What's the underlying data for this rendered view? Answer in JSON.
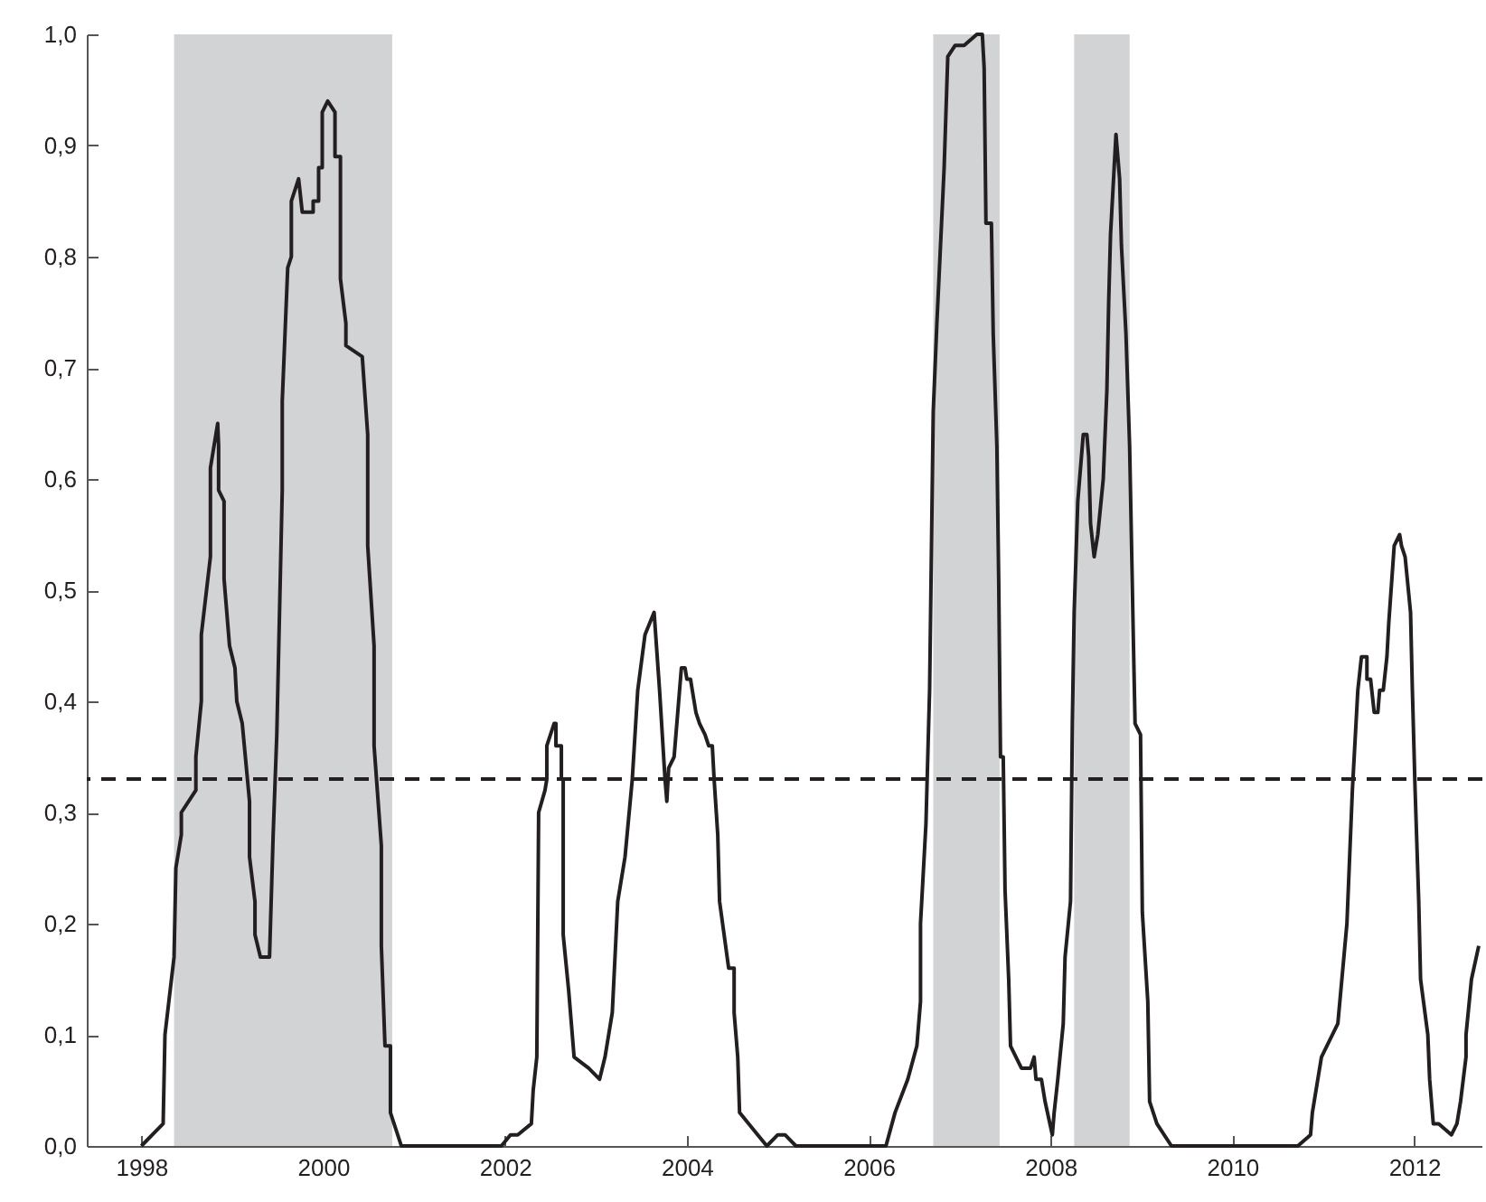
{
  "chart_data": {
    "type": "line",
    "x": [
      1998.0,
      1998.24,
      1998.26,
      1998.36,
      1998.38,
      1998.44,
      1998.44,
      1998.6,
      1998.6,
      1998.66,
      1998.66,
      1998.76,
      1998.76,
      1998.84,
      1998.85,
      1998.85,
      1998.91,
      1998.91,
      1998.97,
      1999.03,
      1999.05,
      1999.11,
      1999.19,
      1999.19,
      1999.25,
      1999.25,
      1999.31,
      1999.41,
      1999.45,
      1999.49,
      1999.55,
      1999.55,
      1999.61,
      1999.65,
      1999.65,
      1999.73,
      1999.77,
      1999.89,
      1999.89,
      1999.95,
      1999.95,
      1999.99,
      1999.99,
      2000.05,
      2000.13,
      2000.13,
      2000.19,
      2000.19,
      2000.25,
      2000.25,
      2000.43,
      2000.49,
      2000.49,
      2000.56,
      2000.56,
      2000.64,
      2000.64,
      2000.68,
      2000.74,
      2000.74,
      2000.86,
      2001.96,
      2002.06,
      2002.14,
      2002.29,
      2002.31,
      2002.35,
      2002.37,
      2002.44,
      2002.46,
      2002.46,
      2002.54,
      2002.56,
      2002.56,
      2002.62,
      2002.62,
      2002.64,
      2002.64,
      2002.7,
      2002.76,
      2002.92,
      2003.04,
      2003.1,
      2003.18,
      2003.24,
      2003.32,
      2003.4,
      2003.46,
      2003.54,
      2003.64,
      2003.7,
      2003.76,
      2003.78,
      2003.8,
      2003.86,
      2003.94,
      2003.98,
      2004.0,
      2004.04,
      2004.06,
      2004.1,
      2004.14,
      2004.2,
      2004.24,
      2004.28,
      2004.3,
      2004.34,
      2004.36,
      2004.46,
      2004.52,
      2004.52,
      2004.56,
      2004.58,
      2004.78,
      2004.88,
      2005.0,
      2005.08,
      2005.2,
      2006.19,
      2006.29,
      2006.43,
      2006.53,
      2006.57,
      2006.57,
      2006.63,
      2006.67,
      2006.71,
      2006.75,
      2006.79,
      2006.83,
      2006.87,
      2006.95,
      2007.05,
      2007.19,
      2007.25,
      2007.27,
      2007.29,
      2007.35,
      2007.37,
      2007.41,
      2007.43,
      2007.45,
      2007.48,
      2007.5,
      2007.54,
      2007.56,
      2007.62,
      2007.68,
      2007.78,
      2007.82,
      2007.84,
      2007.9,
      2007.94,
      2008.02,
      2008.04,
      2008.08,
      2008.14,
      2008.16,
      2008.22,
      2008.24,
      2008.26,
      2008.3,
      2008.34,
      2008.36,
      2008.4,
      2008.42,
      2008.44,
      2008.48,
      2008.52,
      2008.58,
      2008.62,
      2008.64,
      2008.66,
      2008.72,
      2008.76,
      2008.78,
      2008.83,
      2008.87,
      2008.91,
      2008.93,
      2008.99,
      2009.01,
      2009.07,
      2009.09,
      2009.17,
      2009.33,
      2010.72,
      2010.86,
      2010.88,
      2010.98,
      2011.16,
      2011.26,
      2011.32,
      2011.38,
      2011.42,
      2011.48,
      2011.48,
      2011.52,
      2011.56,
      2011.6,
      2011.62,
      2011.66,
      2011.7,
      2011.72,
      2011.78,
      2011.84,
      2011.86,
      2011.9,
      2011.96,
      2011.98,
      2012.01,
      2012.05,
      2012.07,
      2012.15,
      2012.17,
      2012.21,
      2012.27,
      2012.41,
      2012.47,
      2012.51,
      2012.57,
      2012.57,
      2012.63,
      2012.71
    ],
    "series": [
      {
        "color": "#231f20",
        "values": [
          0,
          0.02,
          0.1,
          0.17,
          0.25,
          0.28,
          0.3,
          0.32,
          0.35,
          0.4,
          0.46,
          0.53,
          0.61,
          0.65,
          0.63,
          0.59,
          0.58,
          0.51,
          0.45,
          0.43,
          0.4,
          0.38,
          0.31,
          0.26,
          0.22,
          0.19,
          0.17,
          0.17,
          0.28,
          0.37,
          0.59,
          0.67,
          0.79,
          0.8,
          0.85,
          0.87,
          0.84,
          0.84,
          0.85,
          0.85,
          0.88,
          0.88,
          0.93,
          0.94,
          0.93,
          0.89,
          0.89,
          0.78,
          0.74,
          0.72,
          0.71,
          0.64,
          0.54,
          0.45,
          0.36,
          0.27,
          0.18,
          0.09,
          0.09,
          0.03,
          0,
          0,
          0.01,
          0.01,
          0.02,
          0.05,
          0.08,
          0.3,
          0.32,
          0.33,
          0.36,
          0.38,
          0.38,
          0.36,
          0.36,
          0.33,
          0.33,
          0.19,
          0.14,
          0.08,
          0.07,
          0.06,
          0.08,
          0.12,
          0.22,
          0.26,
          0.33,
          0.41,
          0.46,
          0.48,
          0.41,
          0.33,
          0.31,
          0.34,
          0.35,
          0.43,
          0.43,
          0.42,
          0.42,
          0.41,
          0.39,
          0.38,
          0.37,
          0.36,
          0.36,
          0.33,
          0.28,
          0.22,
          0.16,
          0.16,
          0.12,
          0.08,
          0.03,
          0.01,
          0,
          0.01,
          0.01,
          0,
          0,
          0.03,
          0.06,
          0.09,
          0.13,
          0.2,
          0.29,
          0.41,
          0.66,
          0.74,
          0.81,
          0.88,
          0.98,
          0.99,
          0.99,
          1.0,
          1.0,
          0.97,
          0.83,
          0.83,
          0.73,
          0.63,
          0.51,
          0.35,
          0.35,
          0.23,
          0.15,
          0.09,
          0.08,
          0.07,
          0.07,
          0.08,
          0.06,
          0.06,
          0.04,
          0.01,
          0.03,
          0.06,
          0.11,
          0.17,
          0.22,
          0.38,
          0.48,
          0.58,
          0.62,
          0.64,
          0.64,
          0.62,
          0.56,
          0.53,
          0.55,
          0.6,
          0.68,
          0.76,
          0.82,
          0.91,
          0.87,
          0.81,
          0.73,
          0.63,
          0.46,
          0.38,
          0.37,
          0.21,
          0.13,
          0.04,
          0.02,
          0,
          0,
          0.01,
          0.03,
          0.08,
          0.11,
          0.2,
          0.32,
          0.41,
          0.44,
          0.44,
          0.42,
          0.42,
          0.39,
          0.39,
          0.41,
          0.41,
          0.44,
          0.47,
          0.54,
          0.55,
          0.54,
          0.53,
          0.48,
          0.41,
          0.32,
          0.22,
          0.15,
          0.1,
          0.06,
          0.02,
          0.02,
          0.01,
          0.02,
          0.04,
          0.08,
          0.1,
          0.15,
          0.18
        ]
      }
    ],
    "xlim": [
      1997.4,
      2012.75
    ],
    "xticks": [
      1998,
      2000,
      2002,
      2004,
      2006,
      2008,
      2010,
      2012
    ],
    "ylim": [
      0,
      1
    ],
    "yticks": [
      {
        "value": 0,
        "label": "0,0"
      },
      {
        "value": 0.1,
        "label": "0,1"
      },
      {
        "value": 0.2,
        "label": "0,2"
      },
      {
        "value": 0.3,
        "label": "0,3"
      },
      {
        "value": 0.4,
        "label": "0,4"
      },
      {
        "value": 0.5,
        "label": "0,5"
      },
      {
        "value": 0.6,
        "label": "0,6"
      },
      {
        "value": 0.7,
        "label": "0,7"
      },
      {
        "value": 0.8,
        "label": "0,8"
      },
      {
        "value": 0.9,
        "label": "0,9"
      },
      {
        "value": 1,
        "label": "1,0"
      }
    ],
    "ref_lines": [
      {
        "axis": "y",
        "value": 0.33,
        "color": "#231f20",
        "line_style": "dashed"
      }
    ],
    "bands": [
      {
        "axis": "x",
        "from": 1998.36,
        "to": 2000.76,
        "color": "#d1d3d4"
      },
      {
        "axis": "x",
        "from": 2006.71,
        "to": 2007.44,
        "color": "#d1d3d4"
      },
      {
        "axis": "x",
        "from": 2008.26,
        "to": 2008.87,
        "color": "#d1d3d4"
      }
    ],
    "grid": false
  }
}
